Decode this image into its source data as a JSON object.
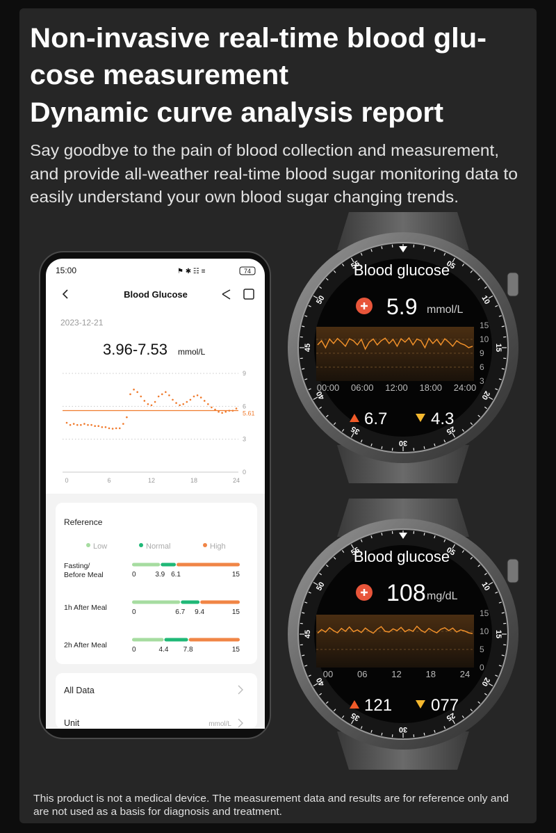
{
  "header": {
    "title_lines": [
      "Non-invasive real-time blood glu-",
      "cose measurement",
      "Dynamic curve analysis report"
    ],
    "description_lines": [
      "Say goodbye to the pain of blood collection and measurement,",
      "and provide all-weather real-time blood sugar monitoring data to",
      "easily understand your own blood sugar changing trends."
    ]
  },
  "phone": {
    "status_time": "15:00",
    "battery": "74",
    "screen_title": "Blood Glucose",
    "date": "2023-12-21",
    "range": "3.96-7.53",
    "range_unit": "mmol/L",
    "chart_data": {
      "type": "scatter",
      "color": "#f07a2c",
      "x": [
        0,
        0.5,
        1,
        1.5,
        2,
        2.5,
        3,
        3.5,
        4,
        4.5,
        5,
        5.5,
        6,
        6.5,
        7,
        7.5,
        8,
        8.5,
        9,
        9.5,
        10,
        10.5,
        11,
        11.5,
        12,
        12.5,
        13,
        13.5,
        14,
        14.5,
        15,
        15.5,
        16,
        16.5,
        17,
        17.5,
        18,
        18.5,
        19,
        19.5,
        20,
        20.5,
        21,
        21.5,
        22,
        22.5,
        23,
        23.5,
        24
      ],
      "values": [
        4.5,
        4.3,
        4.4,
        4.3,
        4.3,
        4.4,
        4.3,
        4.3,
        4.2,
        4.2,
        4.1,
        4.1,
        4.0,
        3.96,
        4.0,
        4.0,
        4.4,
        5.0,
        7.1,
        7.53,
        7.3,
        6.9,
        6.5,
        6.2,
        6.1,
        6.4,
        6.9,
        7.1,
        7.3,
        7.0,
        6.6,
        6.3,
        6.1,
        6.2,
        6.4,
        6.6,
        6.9,
        7.0,
        6.8,
        6.5,
        6.2,
        5.9,
        5.7,
        5.5,
        5.4,
        5.5,
        5.6,
        5.6,
        5.8
      ],
      "xlim": [
        0,
        24
      ],
      "ylim": [
        0,
        9
      ],
      "xticks": [
        0,
        6,
        12,
        18,
        24
      ],
      "yticks": [
        0,
        3,
        6,
        9
      ],
      "reference_line": 5.61,
      "grid": true
    },
    "reference": {
      "title": "Reference",
      "legend": [
        {
          "name": "Low",
          "color": "#a6dca0"
        },
        {
          "name": "Normal",
          "color": "#1fb877"
        },
        {
          "name": "High",
          "color": "#f08546"
        }
      ],
      "rows": [
        {
          "label_lines": [
            "Fasting/",
            "Before Meal"
          ],
          "thresholds": [
            0,
            3.9,
            6.1,
            15
          ]
        },
        {
          "label_lines": [
            "1h After Meal"
          ],
          "thresholds": [
            0,
            6.7,
            9.4,
            15
          ]
        },
        {
          "label_lines": [
            "2h After Meal"
          ],
          "thresholds": [
            0,
            4.4,
            7.8,
            15
          ]
        }
      ]
    },
    "all_data": "All Data",
    "unit_label": "Unit",
    "unit_value": "mmol/L"
  },
  "watches": [
    {
      "title": "Blood glucose",
      "reading": "5.9",
      "unit": "mmol/L",
      "chart_data": {
        "type": "line",
        "color": "#f0902a",
        "values": [
          9.6,
          9.9,
          9.4,
          10.1,
          9.7,
          10.3,
          9.8,
          9.5,
          10.2,
          9.9,
          9.6,
          10.0,
          9.3,
          9.8,
          10.1,
          9.6,
          9.9,
          10.4,
          9.7,
          10.0,
          9.5,
          10.2,
          9.8,
          10.5,
          9.6,
          10.1,
          9.9,
          9.4,
          10.3,
          9.7,
          10.0,
          9.6,
          10.2,
          9.8,
          9.5,
          9.9,
          9.7,
          9.6,
          9.4,
          9.5
        ],
        "yticks": [
          15,
          10,
          9,
          6,
          3
        ],
        "xticks": [
          "00:00",
          "06:00",
          "12:00",
          "18:00",
          "24:00"
        ]
      },
      "high": "6.7",
      "low": "4.3",
      "bezel_numbers": [
        "05",
        "10",
        "15",
        "20",
        "25",
        "30",
        "35",
        "40",
        "45",
        "50",
        "55"
      ]
    },
    {
      "title": "Blood glucose",
      "reading": "108",
      "unit": "mg/dL",
      "chart_data": {
        "type": "line",
        "color": "#f0902a",
        "values": [
          9.5,
          10.5,
          9.8,
          11.0,
          10.2,
          9.6,
          10.8,
          10.0,
          11.2,
          9.9,
          10.4,
          9.7,
          10.9,
          10.1,
          9.5,
          10.6,
          11.3,
          10.0,
          9.8,
          10.7,
          10.2,
          11.1,
          9.9,
          10.5,
          10.0,
          11.4,
          10.3,
          9.7,
          10.8,
          10.1,
          9.6,
          10.6,
          11.0,
          10.2,
          10.9,
          9.8,
          10.4,
          10.1,
          9.6,
          9.4
        ],
        "yticks": [
          15,
          10,
          5,
          0
        ],
        "xticks": [
          "00",
          "06",
          "12",
          "18",
          "24"
        ]
      },
      "high": "121",
      "low": "077",
      "bezel_numbers": [
        "05",
        "10",
        "15",
        "20",
        "25",
        "30",
        "35",
        "40",
        "45",
        "50",
        "55"
      ]
    }
  ],
  "disclaimer_lines": [
    "This product is not a medical device. The measurement data and results are for reference only and",
    "are not used as a basis for diagnosis and treatment."
  ]
}
